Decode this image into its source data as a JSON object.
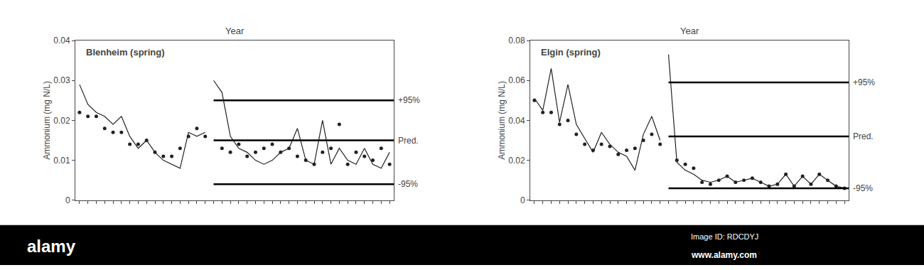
{
  "chart_data": [
    {
      "type": "line",
      "title": "Blenheim (spring)",
      "xlabel": "Year",
      "ylabel": "Ammonium (mg N/L)",
      "xlim": [
        -0.5,
        37.5
      ],
      "xticks": [
        0,
        1,
        2,
        3,
        4,
        5,
        6,
        7,
        8,
        9,
        10,
        11,
        12,
        13,
        14,
        15,
        16,
        17,
        18,
        19,
        20,
        21,
        22,
        23,
        24,
        25,
        26,
        27,
        28,
        29,
        30,
        31,
        32,
        33,
        34,
        35,
        36,
        37
      ],
      "ylim": [
        0,
        0.04
      ],
      "yticks": [
        0,
        0.01,
        0.02,
        0.03,
        0.04
      ],
      "tick_labels": "y",
      "grid": false,
      "series": [
        {
          "type": "scatter",
          "marker": "circle",
          "color": "#222222",
          "x": [
            0,
            1,
            2,
            3,
            4,
            5,
            6,
            7,
            8,
            9,
            10,
            11,
            12,
            13,
            14,
            15
          ],
          "values": [
            0.022,
            0.021,
            0.021,
            0.018,
            0.017,
            0.017,
            0.014,
            0.014,
            0.015,
            0.012,
            0.011,
            0.011,
            0.013,
            0.016,
            0.018,
            0.016
          ]
        },
        {
          "type": "scatter",
          "marker": "circle",
          "color": "#222222",
          "x": [
            17,
            18,
            19,
            20,
            21,
            22,
            23,
            24,
            25,
            26,
            27,
            28,
            29,
            30,
            31,
            32,
            33,
            34,
            35,
            36,
            37
          ],
          "values": [
            0.013,
            0.012,
            0.014,
            0.011,
            0.012,
            0.013,
            0.014,
            0.012,
            0.013,
            0.011,
            0.01,
            0.009,
            0.012,
            0.013,
            0.019,
            0.009,
            0.012,
            0.011,
            0.01,
            0.013,
            0.009
          ]
        },
        {
          "type": "line",
          "line_style": "solid",
          "color": "#222222",
          "x": [
            0,
            1,
            2,
            3,
            4,
            5,
            6,
            7,
            8,
            9,
            10,
            11,
            12,
            13,
            14,
            15
          ],
          "values": [
            0.029,
            0.024,
            0.022,
            0.021,
            0.019,
            0.021,
            0.016,
            0.013,
            0.015,
            0.012,
            0.01,
            0.009,
            0.008,
            0.017,
            0.016,
            0.017
          ]
        },
        {
          "type": "line",
          "line_style": "solid",
          "color": "#222222",
          "x": [
            16,
            17,
            18,
            19,
            20,
            21,
            22,
            23,
            24,
            25,
            26,
            27,
            28,
            29,
            30,
            31,
            32,
            33,
            34,
            35,
            36,
            37
          ],
          "values": [
            0.03,
            0.027,
            0.016,
            0.013,
            0.012,
            0.01,
            0.009,
            0.01,
            0.012,
            0.013,
            0.018,
            0.01,
            0.009,
            0.02,
            0.009,
            0.013,
            0.01,
            0.009,
            0.013,
            0.009,
            0.008,
            0.012
          ]
        },
        {
          "type": "line",
          "line_style": "solid",
          "name": "+95%",
          "color": "#000000",
          "x": [
            16,
            37.5
          ],
          "values": [
            0.025,
            0.025
          ]
        },
        {
          "type": "line",
          "line_style": "solid",
          "name": "Pred.",
          "color": "#000000",
          "x": [
            16,
            37.5
          ],
          "values": [
            0.015,
            0.015
          ]
        },
        {
          "type": "line",
          "line_style": "solid",
          "name": "-95%",
          "color": "#000000",
          "x": [
            16,
            37.5
          ],
          "values": [
            0.004,
            0.004
          ]
        }
      ]
    },
    {
      "type": "line",
      "title": "Elgin (spring)",
      "xlabel": "Year",
      "ylabel": "Ammonium (mg N/L)",
      "xlim": [
        -0.5,
        37.5
      ],
      "xticks": [
        0,
        1,
        2,
        3,
        4,
        5,
        6,
        7,
        8,
        9,
        10,
        11,
        12,
        13,
        14,
        15,
        16,
        17,
        18,
        19,
        20,
        21,
        22,
        23,
        24,
        25,
        26,
        27,
        28,
        29,
        30,
        31,
        32,
        33,
        34,
        35,
        36,
        37
      ],
      "ylim": [
        0,
        0.08
      ],
      "yticks": [
        0,
        0.02,
        0.04,
        0.06,
        0.08
      ],
      "tick_labels": "y",
      "grid": false,
      "series": [
        {
          "type": "scatter",
          "marker": "circle",
          "color": "#222222",
          "x": [
            0,
            1,
            2,
            3,
            4,
            5,
            6,
            7,
            8,
            9,
            10,
            11,
            12,
            13,
            14,
            15
          ],
          "values": [
            0.05,
            0.044,
            0.044,
            0.038,
            0.04,
            0.033,
            0.028,
            0.025,
            0.028,
            0.027,
            0.023,
            0.025,
            0.026,
            0.03,
            0.033,
            0.028
          ]
        },
        {
          "type": "scatter",
          "marker": "circle",
          "color": "#222222",
          "x": [
            17,
            18,
            19,
            20,
            21,
            22,
            23,
            24,
            25,
            26,
            27,
            28,
            29,
            30,
            31,
            32,
            33,
            34,
            35,
            36,
            37
          ],
          "values": [
            0.02,
            0.018,
            0.016,
            0.009,
            0.008,
            0.01,
            0.012,
            0.009,
            0.01,
            0.011,
            0.009,
            0.007,
            0.008,
            0.013,
            0.007,
            0.012,
            0.008,
            0.013,
            0.01,
            0.007,
            0.006
          ]
        },
        {
          "type": "line",
          "line_style": "solid",
          "color": "#222222",
          "x": [
            0,
            1,
            2,
            3,
            4,
            5,
            6,
            7,
            8,
            9,
            10,
            11,
            12,
            13,
            14,
            15
          ],
          "values": [
            0.051,
            0.045,
            0.066,
            0.039,
            0.058,
            0.038,
            0.031,
            0.024,
            0.034,
            0.028,
            0.024,
            0.022,
            0.015,
            0.033,
            0.042,
            0.03
          ]
        },
        {
          "type": "line",
          "line_style": "solid",
          "color": "#222222",
          "x": [
            16,
            17,
            18,
            19,
            20,
            21,
            22,
            23,
            24,
            25,
            26,
            27,
            28,
            29,
            30,
            31,
            32,
            33,
            34,
            35,
            36,
            37
          ],
          "values": [
            0.073,
            0.019,
            0.015,
            0.013,
            0.01,
            0.009,
            0.01,
            0.012,
            0.009,
            0.01,
            0.011,
            0.009,
            0.007,
            0.008,
            0.013,
            0.007,
            0.012,
            0.008,
            0.013,
            0.01,
            0.007,
            0.006
          ]
        },
        {
          "type": "line",
          "line_style": "solid",
          "name": "+95%",
          "color": "#000000",
          "x": [
            16,
            37.5
          ],
          "values": [
            0.059,
            0.059
          ]
        },
        {
          "type": "line",
          "line_style": "solid",
          "name": "Pred.",
          "color": "#000000",
          "x": [
            16,
            37.5
          ],
          "values": [
            0.032,
            0.032
          ]
        },
        {
          "type": "line",
          "line_style": "solid",
          "name": "-95%",
          "color": "#000000",
          "x": [
            16,
            37.5
          ],
          "values": [
            0.006,
            0.006
          ]
        }
      ]
    }
  ],
  "annotations": [
    "alamy",
    "Image ID: RDCDYJ",
    "www.alamy.com"
  ]
}
